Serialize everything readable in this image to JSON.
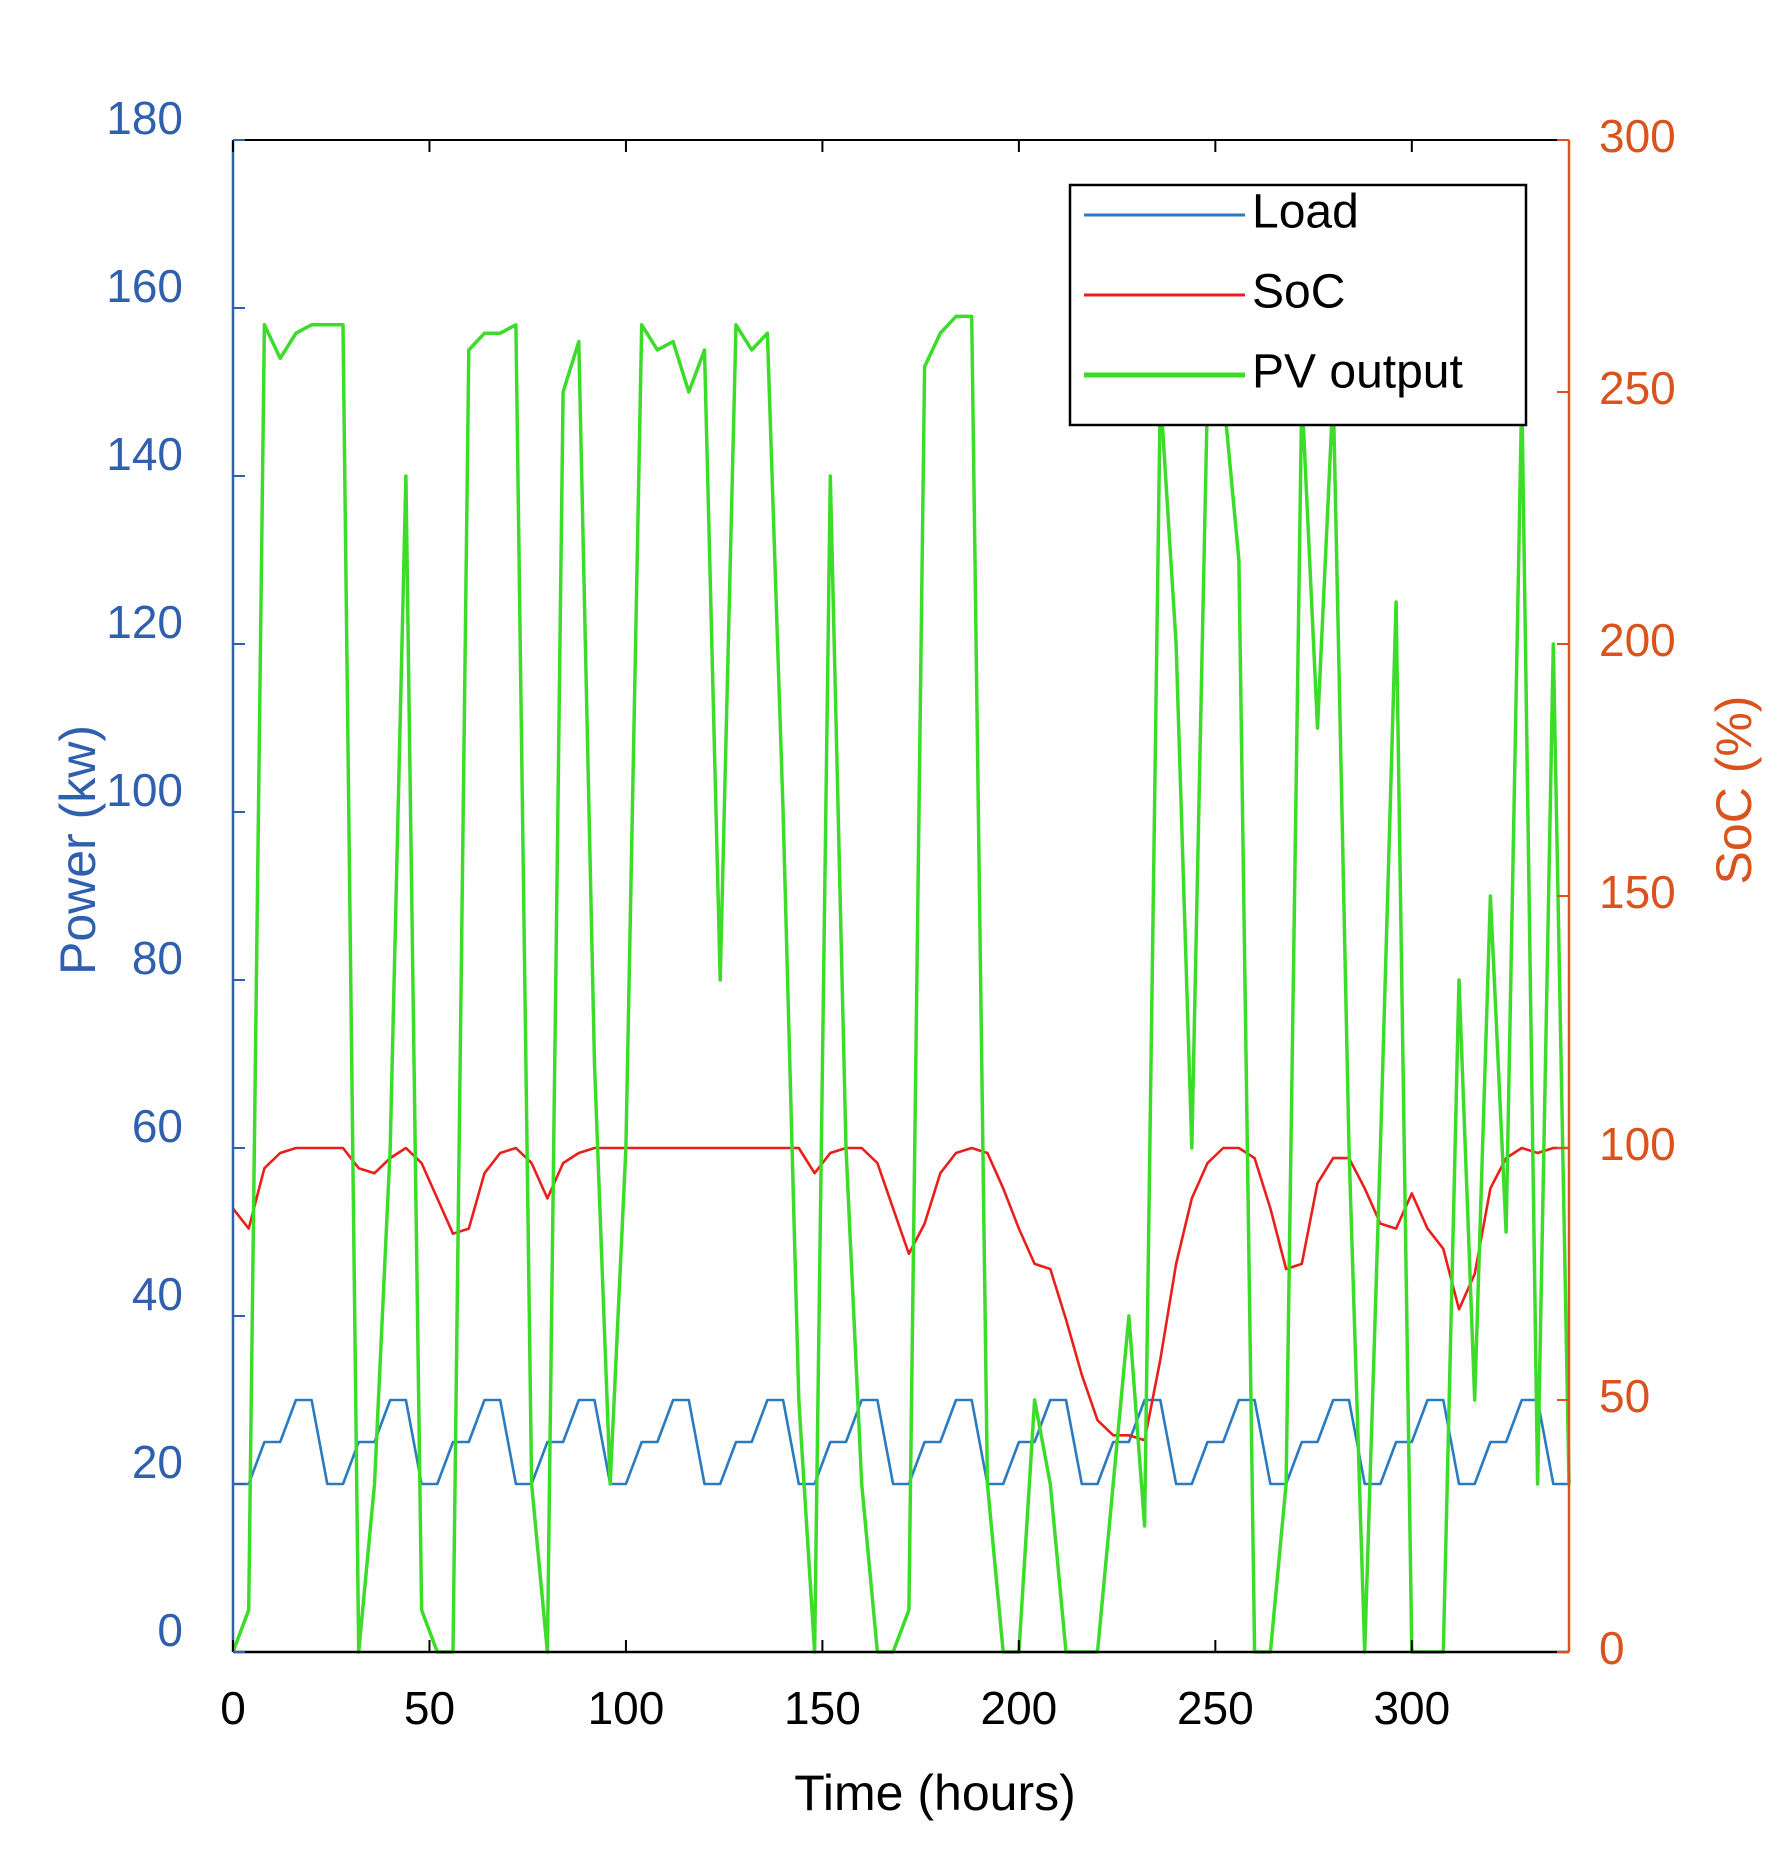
{
  "chart_data": {
    "type": "line",
    "x_label": "Time (hours)",
    "y_label": "Power (kw)",
    "y2_label": "SoC (%)",
    "xlim": [
      0,
      340
    ],
    "xticks": [
      0,
      50,
      100,
      150,
      200,
      250,
      300
    ],
    "ylim": [
      0,
      180
    ],
    "yticks": [
      0,
      20,
      40,
      60,
      80,
      100,
      120,
      140,
      160,
      180
    ],
    "y2lim": [
      0,
      300
    ],
    "y2ticks": [
      0,
      50,
      100,
      150,
      200,
      250,
      300
    ],
    "y_color": "#2f5fae",
    "y2_color": "#d9531e",
    "legend": "upper right",
    "x": [
      0,
      4,
      8,
      12,
      16,
      20,
      24,
      28,
      32,
      36,
      40,
      44,
      48,
      52,
      56,
      60,
      64,
      68,
      72,
      76,
      80,
      84,
      88,
      92,
      96,
      100,
      104,
      108,
      112,
      116,
      120,
      124,
      128,
      132,
      136,
      140,
      144,
      148,
      152,
      156,
      160,
      164,
      168,
      172,
      176,
      180,
      184,
      188,
      192,
      196,
      200,
      204,
      208,
      212,
      216,
      220,
      224,
      228,
      232,
      236,
      240,
      244,
      248,
      252,
      256,
      260,
      264,
      268,
      272,
      276,
      280,
      284,
      288,
      292,
      296,
      300,
      304,
      308,
      312,
      316,
      320,
      324,
      328,
      332,
      336,
      340
    ],
    "series": [
      {
        "name": "Load",
        "color": "#2a7bc0",
        "values": [
          20,
          20,
          25,
          25,
          30,
          30,
          20,
          20,
          25,
          25,
          30,
          30,
          20,
          20,
          25,
          25,
          30,
          30,
          20,
          20,
          25,
          25,
          30,
          30,
          20,
          20,
          25,
          25,
          30,
          30,
          20,
          20,
          25,
          25,
          30,
          30,
          20,
          20,
          25,
          25,
          30,
          30,
          20,
          20,
          25,
          25,
          30,
          30,
          20,
          20,
          25,
          25,
          30,
          30,
          20,
          20,
          25,
          25,
          30,
          30,
          20,
          20,
          25,
          25,
          30,
          30,
          20,
          20,
          25,
          25,
          30,
          30,
          20,
          20,
          25,
          25,
          30,
          30,
          20,
          20,
          25,
          25,
          30,
          30,
          20,
          20
        ]
      },
      {
        "name": "SoC",
        "color": "#e8201c",
        "axis": "y2",
        "values": [
          88,
          84,
          96,
          99,
          100,
          100,
          100,
          100,
          96,
          95,
          98,
          100,
          97,
          90,
          83,
          84,
          95,
          99,
          100,
          97,
          90,
          97,
          99,
          100,
          100,
          100,
          100,
          100,
          100,
          100,
          100,
          100,
          100,
          100,
          100,
          100,
          100,
          95,
          99,
          100,
          100,
          97,
          88,
          79,
          85,
          95,
          99,
          100,
          99,
          92,
          84,
          77,
          76,
          66,
          55,
          46,
          43,
          43,
          42,
          58,
          77,
          90,
          97,
          100,
          100,
          98,
          88,
          76,
          77,
          93,
          98,
          98,
          92,
          85,
          84,
          91,
          84,
          80,
          68,
          75,
          92,
          98,
          100,
          99,
          100,
          100
        ]
      },
      {
        "name": "PV output",
        "color": "#3ddc2a",
        "values": [
          0,
          5,
          158,
          154,
          157,
          158,
          158,
          158,
          0,
          20,
          60,
          140,
          5,
          0,
          0,
          155,
          157,
          157,
          158,
          20,
          0,
          150,
          156,
          70,
          20,
          60,
          158,
          155,
          156,
          150,
          155,
          80,
          158,
          155,
          157,
          100,
          30,
          0,
          140,
          60,
          20,
          0,
          0,
          5,
          153,
          157,
          159,
          159,
          20,
          0,
          0,
          30,
          20,
          0,
          0,
          0,
          20,
          40,
          15,
          150,
          120,
          60,
          150,
          150,
          130,
          0,
          0,
          20,
          150,
          110,
          150,
          60,
          0,
          60,
          125,
          0,
          0,
          0,
          80,
          30,
          90,
          50,
          150,
          20,
          120,
          20
        ]
      }
    ]
  }
}
